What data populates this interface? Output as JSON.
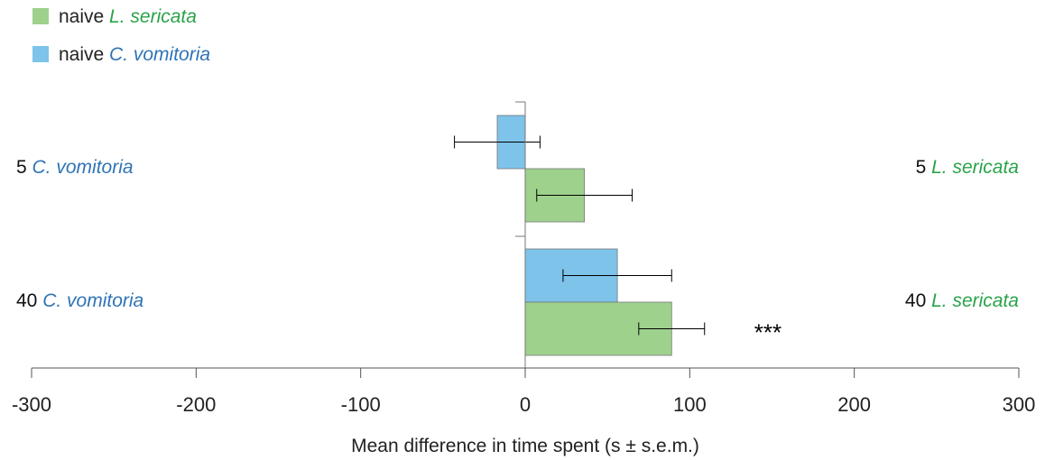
{
  "chart_data": {
    "type": "bar",
    "orientation": "horizontal",
    "xlabel": "Mean difference in time spent (s ± s.e.m.)",
    "xlim": [
      -300,
      300
    ],
    "xticks": [
      -300,
      -200,
      -100,
      0,
      100,
      200,
      300
    ],
    "legend_position": "top-left",
    "categories": [
      {
        "left_prefix": "5 ",
        "left_species": "C. vomitoria",
        "right_prefix": "5 ",
        "right_species": "L. sericata"
      },
      {
        "left_prefix": "40 ",
        "left_species": "C. vomitoria",
        "right_prefix": "40 ",
        "right_species": "L. sericata"
      }
    ],
    "series": [
      {
        "legend_prefix": "naive ",
        "legend_species": "L. sericata",
        "color": "#9ed18c",
        "label_color": "#2aa34a",
        "values": [
          36,
          89
        ],
        "error": [
          29,
          20
        ],
        "annotations": [
          "",
          "***"
        ]
      },
      {
        "legend_prefix": "naive ",
        "legend_species": "C. vomitoria",
        "color": "#7ec3ea",
        "label_color": "#2f74b5",
        "values": [
          -17,
          56
        ],
        "error": [
          26,
          33
        ],
        "annotations": [
          "",
          ""
        ]
      }
    ],
    "grid": false
  }
}
